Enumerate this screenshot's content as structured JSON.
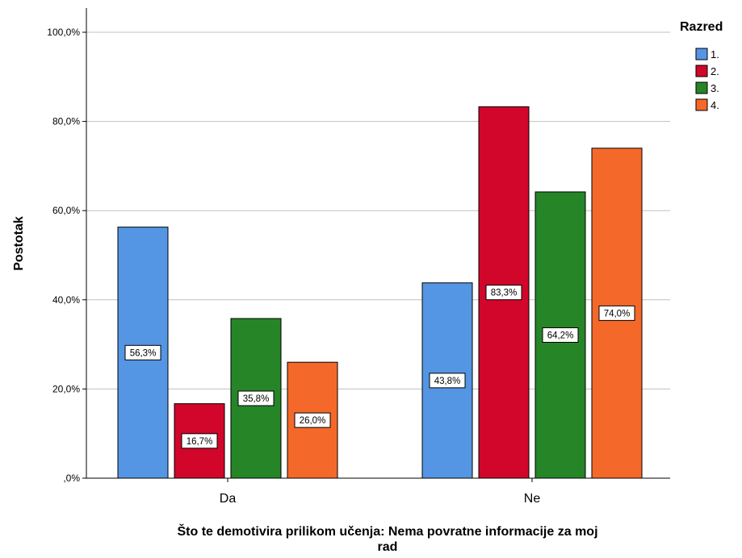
{
  "chart_data": {
    "type": "bar",
    "xlabel": "Što te demotivira prilikom učenja: Nema povratne informacije za moj\nrad",
    "ylabel": "Postotak",
    "ylim": [
      0,
      105
    ],
    "yticks": [
      0,
      20,
      40,
      60,
      80,
      100
    ],
    "ytick_labels": [
      ",0%",
      "20,0%",
      "40,0%",
      "60,0%",
      "80,0%",
      "100,0%"
    ],
    "grid": true,
    "categories": [
      "Da",
      "Ne"
    ],
    "legend": {
      "title": "Razred",
      "position": "top-right"
    },
    "series": [
      {
        "name": "1.",
        "color": "#5496e3",
        "values": [
          56.3,
          43.8
        ],
        "labels": [
          "56,3%",
          "43,8%"
        ]
      },
      {
        "name": "2.",
        "color": "#d2052b",
        "values": [
          16.7,
          83.3
        ],
        "labels": [
          "16,7%",
          "83,3%"
        ]
      },
      {
        "name": "3.",
        "color": "#258527",
        "values": [
          35.8,
          64.2
        ],
        "labels": [
          "35,8%",
          "64,2%"
        ]
      },
      {
        "name": "4.",
        "color": "#f4692a",
        "values": [
          26.0,
          74.0
        ],
        "labels": [
          "26,0%",
          "74,0%"
        ]
      }
    ]
  }
}
